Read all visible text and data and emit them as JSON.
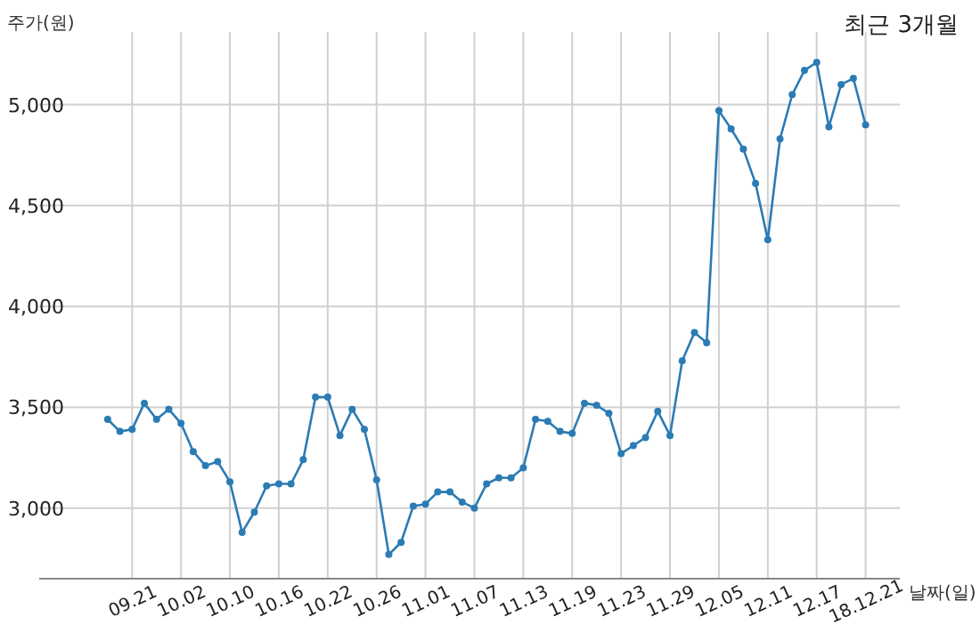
{
  "chart_data": {
    "type": "line",
    "title": "최근 3개월",
    "ylabel": "주가(원)",
    "xlabel": "날짜(일)",
    "categories": [
      null,
      null,
      "09.21",
      null,
      null,
      null,
      "10.02",
      null,
      null,
      null,
      "10.10",
      null,
      null,
      null,
      "10.16",
      null,
      null,
      null,
      "10.22",
      null,
      null,
      null,
      "10.26",
      null,
      null,
      null,
      "11.01",
      null,
      null,
      null,
      "11.07",
      null,
      null,
      null,
      "11.13",
      null,
      null,
      null,
      "11.19",
      null,
      null,
      null,
      "11.23",
      null,
      null,
      null,
      "11.29",
      null,
      null,
      null,
      "12.05",
      null,
      null,
      null,
      "12.11",
      null,
      null,
      null,
      "12.17",
      null,
      null,
      null,
      "18.12.21"
    ],
    "series": [
      {
        "color": "#2b7bb4",
        "values": [
          3440,
          3380,
          3390,
          3520,
          3440,
          3490,
          3420,
          3280,
          3210,
          3230,
          3130,
          2880,
          2980,
          3110,
          3120,
          3120,
          3240,
          3550,
          3550,
          3360,
          3490,
          3390,
          3140,
          2770,
          2830,
          3010,
          3020,
          3080,
          3080,
          3030,
          3000,
          3120,
          3150,
          3150,
          3200,
          3440,
          3430,
          3380,
          3370,
          3520,
          3510,
          3470,
          3270,
          3310,
          3350,
          3480,
          3360,
          3730,
          3870,
          3820,
          4970,
          4880,
          4780,
          4610,
          4330,
          4830,
          5050,
          5170,
          5210,
          4890,
          5100,
          5130,
          4900
        ]
      }
    ],
    "ylim": [
      2650,
      5360
    ],
    "yticks": [
      {
        "value": 3000,
        "label": "3,000"
      },
      {
        "value": 3500,
        "label": "3,500"
      },
      {
        "value": 4000,
        "label": "4,000"
      },
      {
        "value": 4500,
        "label": "4,500"
      },
      {
        "value": 5000,
        "label": "5,000"
      }
    ],
    "grid": true,
    "marker": "circle",
    "line_style": "solid"
  }
}
